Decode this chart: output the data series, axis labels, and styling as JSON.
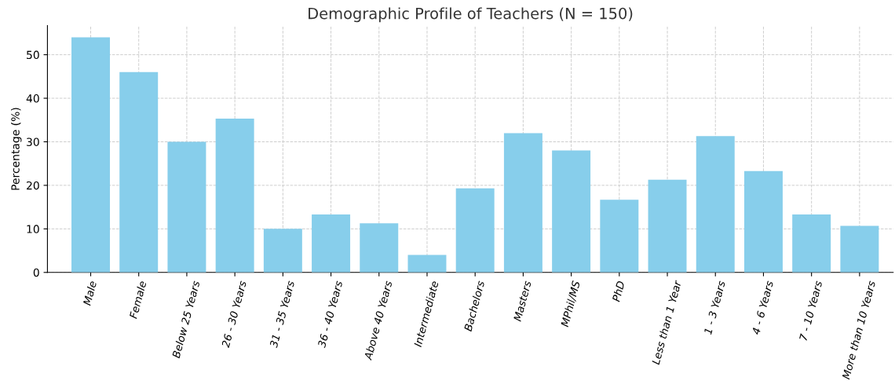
{
  "chart_data": {
    "type": "bar",
    "title": "Demographic Profile of Teachers (N = 150)",
    "ylabel": "Percentage (%)",
    "categories": [
      "Male",
      "Female",
      "Below 25 Years",
      "26 - 30 Years",
      "31 - 35 Years",
      "36 - 40 Years",
      "Above 40 Years",
      "Intermediate",
      "Bachelors",
      "Masters",
      "MPhil/MS",
      "PhD",
      "Less than 1 Year",
      "1 - 3 Years",
      "4 - 6 Years",
      "7 - 10 Years",
      "More than 10 Years"
    ],
    "values": [
      54,
      46,
      30,
      35.3,
      10,
      13.3,
      11.3,
      4,
      19.3,
      32,
      28,
      16.7,
      21.3,
      31.3,
      23.3,
      13.3,
      10.7
    ],
    "color": "#87ceeb",
    "ylim": [
      0,
      56.7
    ],
    "yticks": [
      0,
      10,
      20,
      30,
      40,
      50
    ],
    "grid": true
  }
}
